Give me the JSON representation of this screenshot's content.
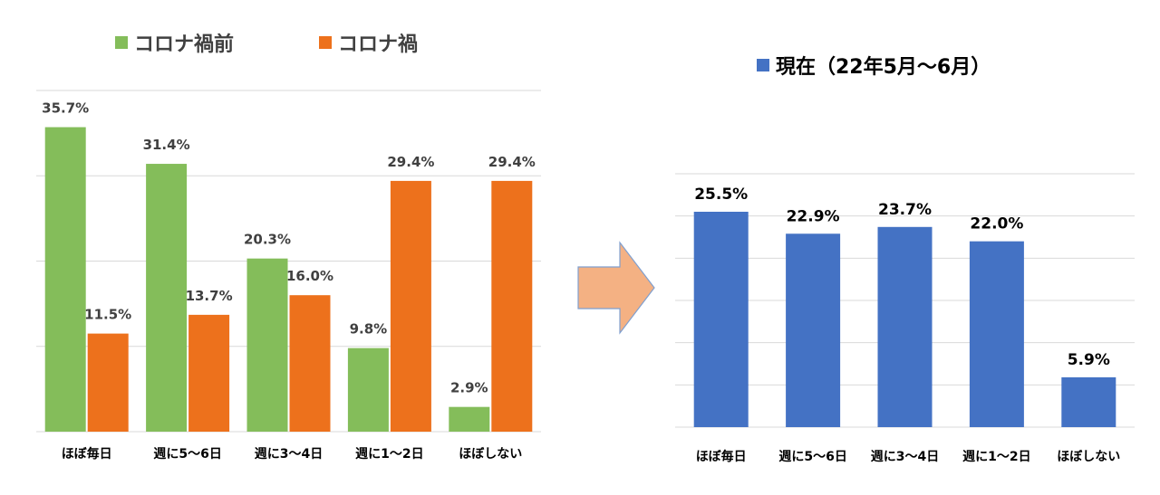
{
  "chart_data": [
    {
      "type": "bar",
      "categories": [
        "ほぼ毎日",
        "週に5～6日",
        "週に3～4日",
        "週に1～2日",
        "ほぼしない"
      ],
      "series": [
        {
          "name": "コロナ禍前",
          "values": [
            35.7,
            31.4,
            20.3,
            9.8,
            2.9
          ],
          "labels": [
            "35.7%",
            "31.4%",
            "20.3%",
            "9.8%",
            "2.9%"
          ],
          "color": "#84BD5A"
        },
        {
          "name": "コロナ禍",
          "values": [
            11.5,
            13.7,
            16.0,
            29.4,
            29.4
          ],
          "labels": [
            "11.5%",
            "13.7%",
            "16.0%",
            "29.4%",
            "29.4%"
          ],
          "color": "#ED711C"
        }
      ],
      "ylim": [
        0,
        40
      ],
      "grid": true,
      "legend": "top"
    },
    {
      "type": "bar",
      "categories": [
        "ほぼ毎日",
        "週に5～6日",
        "週に3～4日",
        "週に1～2日",
        "ほぼしない"
      ],
      "series": [
        {
          "name": "現在（22年5月～6月）",
          "values": [
            25.5,
            22.9,
            23.7,
            22.0,
            5.9
          ],
          "labels": [
            "25.5%",
            "22.9%",
            "23.7%",
            "22.0%",
            "5.9%"
          ],
          "color": "#4472C4"
        }
      ],
      "ylim": [
        0,
        30
      ],
      "grid": true,
      "legend": "top"
    }
  ],
  "arrow": {
    "color": "#F4B183",
    "border": "#7F9FCF"
  }
}
